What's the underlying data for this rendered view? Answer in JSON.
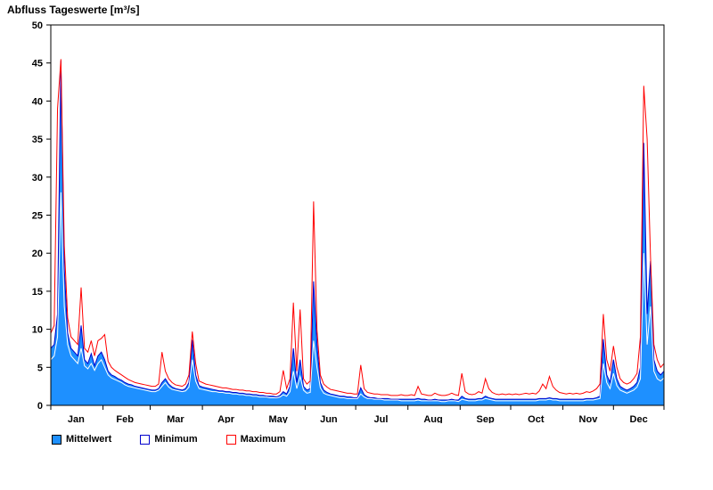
{
  "chart_data": {
    "type": "area",
    "title": "Abfluss Tageswerte [m³/s]",
    "ylim": [
      0,
      50
    ],
    "y_tick_step": 5,
    "x_start": 1,
    "x_step": 2,
    "x_max": 365,
    "grid": false,
    "legend_position": "bottom-left",
    "months": [
      "Jan",
      "Feb",
      "Mar",
      "Apr",
      "May",
      "Jun",
      "Jul",
      "Aug",
      "Sep",
      "Oct",
      "Nov",
      "Dec"
    ],
    "month_mid_days": [
      16,
      45,
      75,
      105,
      136,
      166,
      197,
      228,
      259,
      289,
      320,
      350
    ],
    "month_boundary_days": [
      1,
      32,
      60,
      91,
      121,
      152,
      182,
      213,
      244,
      274,
      305,
      335,
      365
    ],
    "series": [
      {
        "name": "Mittelwert",
        "style": "area",
        "fill": "#1e90ff",
        "stroke": "#0000cd",
        "values": [
          7.5,
          8,
          12,
          45.3,
          18,
          9.5,
          7.5,
          7,
          6.5,
          10.5,
          6,
          5.5,
          6.8,
          5.2,
          6.5,
          7,
          6,
          4.5,
          4,
          3.8,
          3.5,
          3.3,
          3,
          2.8,
          2.7,
          2.5,
          2.4,
          2.3,
          2.2,
          2.1,
          2,
          2,
          2.2,
          3,
          3.5,
          2.8,
          2.4,
          2.2,
          2.1,
          2,
          2.2,
          3,
          8.6,
          4,
          2.6,
          2.4,
          2.3,
          2.2,
          2.1,
          2,
          1.9,
          1.9,
          1.8,
          1.8,
          1.7,
          1.7,
          1.6,
          1.6,
          1.5,
          1.5,
          1.4,
          1.4,
          1.3,
          1.3,
          1.2,
          1.2,
          1.2,
          1.1,
          1.3,
          1.8,
          1.5,
          2.5,
          7.5,
          3,
          6,
          2.5,
          2,
          2.2,
          16.3,
          8,
          3,
          2,
          1.7,
          1.5,
          1.4,
          1.3,
          1.2,
          1.2,
          1.1,
          1.1,
          1,
          1,
          2.3,
          1.4,
          1.1,
          1,
          1,
          0.9,
          0.9,
          0.9,
          0.9,
          0.8,
          0.8,
          0.8,
          0.8,
          0.8,
          0.8,
          0.8,
          0.8,
          0.9,
          0.8,
          0.8,
          0.7,
          0.7,
          0.8,
          0.7,
          0.7,
          0.7,
          0.7,
          0.8,
          0.7,
          0.7,
          1.2,
          0.9,
          0.8,
          0.8,
          0.8,
          0.9,
          0.9,
          1.2,
          1,
          0.9,
          0.8,
          0.8,
          0.8,
          0.8,
          0.8,
          0.8,
          0.8,
          0.8,
          0.8,
          0.8,
          0.8,
          0.8,
          0.8,
          0.9,
          0.9,
          0.9,
          1,
          0.9,
          0.9,
          0.8,
          0.8,
          0.8,
          0.8,
          0.8,
          0.8,
          0.8,
          0.8,
          0.9,
          0.9,
          0.9,
          1,
          1.2,
          8.7,
          4,
          3,
          6,
          3.5,
          2.5,
          2.2,
          2,
          2.2,
          2.5,
          3,
          5,
          34.5,
          12,
          19,
          6,
          4.5,
          4,
          4.5
        ]
      },
      {
        "name": "Minimum",
        "style": "line",
        "stroke": "#ffffff",
        "values": [
          6,
          6.5,
          9,
          28,
          13,
          8,
          6.5,
          6,
          5.5,
          7.5,
          5.2,
          4.8,
          5.5,
          4.6,
          5.5,
          6,
          5,
          4,
          3.6,
          3.4,
          3.2,
          3,
          2.7,
          2.5,
          2.4,
          2.3,
          2.2,
          2.1,
          2,
          1.9,
          1.8,
          1.8,
          2,
          2.5,
          3,
          2.4,
          2.1,
          2,
          1.9,
          1.8,
          1.9,
          2.4,
          6,
          3.2,
          2.2,
          2.1,
          2,
          1.9,
          1.8,
          1.8,
          1.7,
          1.7,
          1.6,
          1.6,
          1.5,
          1.5,
          1.4,
          1.4,
          1.3,
          1.3,
          1.2,
          1.2,
          1.1,
          1.1,
          1.1,
          1,
          1,
          1,
          1.1,
          1.4,
          1.2,
          1.8,
          4.5,
          2.2,
          3.8,
          2,
          1.6,
          1.7,
          8.5,
          5,
          2.3,
          1.6,
          1.4,
          1.3,
          1.2,
          1.1,
          1,
          1,
          0.9,
          0.9,
          0.9,
          0.9,
          1.5,
          1.1,
          0.9,
          0.9,
          0.8,
          0.8,
          0.8,
          0.7,
          0.7,
          0.7,
          0.7,
          0.7,
          0.6,
          0.6,
          0.6,
          0.6,
          0.6,
          0.7,
          0.6,
          0.6,
          0.6,
          0.6,
          0.6,
          0.6,
          0.5,
          0.5,
          0.6,
          0.6,
          0.6,
          0.5,
          0.8,
          0.7,
          0.6,
          0.6,
          0.6,
          0.7,
          0.7,
          0.9,
          0.8,
          0.7,
          0.6,
          0.6,
          0.6,
          0.6,
          0.6,
          0.6,
          0.6,
          0.6,
          0.6,
          0.6,
          0.6,
          0.6,
          0.6,
          0.7,
          0.7,
          0.7,
          0.8,
          0.7,
          0.7,
          0.6,
          0.6,
          0.6,
          0.6,
          0.6,
          0.6,
          0.6,
          0.6,
          0.7,
          0.7,
          0.7,
          0.8,
          0.9,
          5.5,
          3,
          2.2,
          4.2,
          2.6,
          2,
          1.8,
          1.6,
          1.8,
          2,
          2.4,
          3.5,
          20,
          8,
          13,
          4.5,
          3.5,
          3.2,
          3.6
        ]
      },
      {
        "name": "Maximum",
        "style": "line",
        "stroke": "#ff0000",
        "values": [
          9.5,
          10.5,
          39,
          45.5,
          21,
          11.5,
          9,
          8.5,
          8,
          15.5,
          7.5,
          7,
          8.5,
          6.5,
          8.5,
          8.8,
          9.3,
          5.8,
          5,
          4.6,
          4.3,
          4,
          3.7,
          3.4,
          3.2,
          3,
          2.9,
          2.8,
          2.7,
          2.6,
          2.5,
          2.5,
          2.8,
          7,
          4.5,
          3.5,
          3,
          2.7,
          2.6,
          2.5,
          2.8,
          4,
          9.7,
          5.5,
          3.2,
          3,
          2.8,
          2.7,
          2.6,
          2.5,
          2.4,
          2.3,
          2.3,
          2.2,
          2.1,
          2.1,
          2,
          2,
          1.9,
          1.9,
          1.8,
          1.8,
          1.7,
          1.7,
          1.6,
          1.6,
          1.5,
          1.5,
          1.8,
          4.6,
          2.2,
          3.5,
          13.5,
          4.5,
          12.6,
          3.5,
          2.8,
          3.2,
          26.8,
          10,
          4,
          2.8,
          2.4,
          2.1,
          2,
          1.9,
          1.8,
          1.7,
          1.6,
          1.6,
          1.5,
          1.5,
          5.3,
          2.2,
          1.7,
          1.6,
          1.5,
          1.5,
          1.4,
          1.4,
          1.4,
          1.3,
          1.3,
          1.3,
          1.4,
          1.3,
          1.3,
          1.4,
          1.3,
          2.5,
          1.5,
          1.4,
          1.3,
          1.3,
          1.6,
          1.4,
          1.3,
          1.3,
          1.4,
          1.6,
          1.4,
          1.3,
          4.2,
          1.8,
          1.5,
          1.4,
          1.5,
          1.8,
          1.6,
          3.5,
          2.2,
          1.7,
          1.5,
          1.4,
          1.5,
          1.4,
          1.5,
          1.4,
          1.5,
          1.4,
          1.5,
          1.6,
          1.5,
          1.6,
          1.5,
          1.9,
          2.8,
          2.2,
          3.8,
          2.5,
          2,
          1.7,
          1.6,
          1.5,
          1.6,
          1.5,
          1.6,
          1.5,
          1.6,
          1.8,
          1.7,
          1.9,
          2.2,
          2.8,
          12,
          6,
          4.5,
          7.8,
          5,
          3.5,
          3,
          2.8,
          3,
          3.5,
          4.2,
          9,
          42,
          35,
          19.5,
          8,
          6,
          5,
          5.5
        ]
      }
    ],
    "legend": [
      {
        "label": "Mittelwert",
        "fill": "#1e90ff",
        "border": "#000000"
      },
      {
        "label": "Minimum",
        "fill": "#ffffff",
        "border": "#0000cd"
      },
      {
        "label": "Maximum",
        "fill": "#ffffff",
        "border": "#ff0000"
      }
    ]
  }
}
